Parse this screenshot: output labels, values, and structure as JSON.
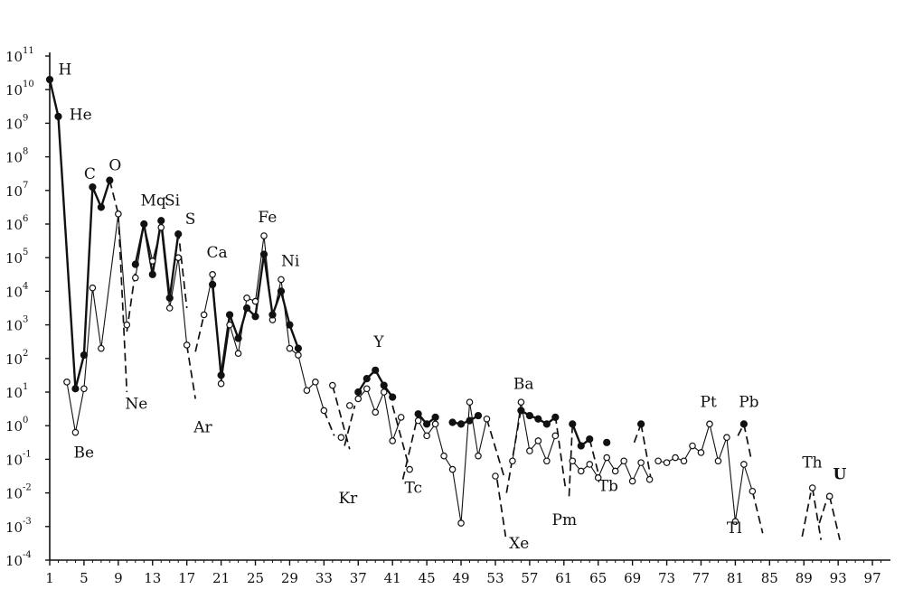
{
  "chart_data": {
    "type": "line",
    "title": "",
    "xlabel": "",
    "ylabel": "",
    "x_axis": {
      "range": [
        1,
        99
      ],
      "ticks": [
        1,
        5,
        9,
        13,
        17,
        21,
        25,
        29,
        33,
        37,
        41,
        45,
        49,
        53,
        57,
        61,
        65,
        69,
        73,
        77,
        81,
        85,
        89,
        93,
        97
      ]
    },
    "y_axis": {
      "scale": "log",
      "range_exponent": [
        -4,
        11
      ],
      "tick_exponents": [
        -4,
        -3,
        -2,
        -1,
        0,
        1,
        2,
        3,
        4,
        5,
        6,
        7,
        8,
        9,
        10,
        11
      ]
    },
    "grid": false,
    "legend": "none",
    "series": [
      {
        "marker": "filled-circle",
        "points_log10": [
          [
            1,
            10.3
          ],
          [
            2,
            9.2
          ],
          [
            4,
            1.1
          ],
          [
            5,
            2.1
          ],
          [
            6,
            7.1
          ],
          [
            7,
            6.5
          ],
          [
            8,
            7.3
          ],
          [
            11,
            4.8
          ],
          [
            12,
            6.0
          ],
          [
            13,
            4.5
          ],
          [
            14,
            6.1
          ],
          [
            15,
            3.8
          ],
          [
            16,
            5.7
          ],
          [
            20,
            4.2
          ],
          [
            21,
            1.5
          ],
          [
            22,
            3.3
          ],
          [
            23,
            2.6
          ],
          [
            24,
            3.5
          ],
          [
            25,
            3.25
          ],
          [
            26,
            5.1
          ],
          [
            27,
            3.3
          ],
          [
            28,
            4.0
          ],
          [
            29,
            3.0
          ],
          [
            30,
            2.3
          ],
          [
            37,
            1.0
          ],
          [
            38,
            1.4
          ],
          [
            39,
            1.65
          ],
          [
            40,
            1.2
          ],
          [
            41,
            0.85
          ],
          [
            44,
            0.35
          ],
          [
            45,
            0.05
          ],
          [
            46,
            0.25
          ],
          [
            48,
            0.1
          ],
          [
            49,
            0.05
          ],
          [
            50,
            0.15
          ],
          [
            51,
            0.3
          ],
          [
            56,
            0.45
          ],
          [
            57,
            0.3
          ],
          [
            58,
            0.2
          ],
          [
            59,
            0.05
          ],
          [
            60,
            0.25
          ],
          [
            62,
            0.05
          ],
          [
            63,
            -0.6
          ],
          [
            64,
            -0.4
          ],
          [
            66,
            -0.5
          ],
          [
            70,
            0.05
          ],
          [
            82,
            0.05
          ]
        ]
      },
      {
        "marker": "open-circle",
        "points_log10": [
          [
            3,
            1.3
          ],
          [
            4,
            -0.2
          ],
          [
            5,
            1.1
          ],
          [
            6,
            4.1
          ],
          [
            7,
            2.3
          ],
          [
            9,
            6.3
          ],
          [
            10,
            3.0
          ],
          [
            11,
            4.4
          ],
          [
            12,
            6.0
          ],
          [
            13,
            4.9
          ],
          [
            14,
            5.9
          ],
          [
            15,
            3.5
          ],
          [
            16,
            5.0
          ],
          [
            17,
            2.4
          ],
          [
            19,
            3.3
          ],
          [
            20,
            4.5
          ],
          [
            21,
            1.25
          ],
          [
            22,
            3.0
          ],
          [
            23,
            2.15
          ],
          [
            24,
            3.8
          ],
          [
            25,
            3.7
          ],
          [
            26,
            5.65
          ],
          [
            27,
            3.15
          ],
          [
            28,
            4.35
          ],
          [
            29,
            2.3
          ],
          [
            30,
            2.1
          ],
          [
            31,
            1.05
          ],
          [
            32,
            1.3
          ],
          [
            33,
            0.45
          ],
          [
            34,
            1.2
          ],
          [
            35,
            -0.35
          ],
          [
            36,
            0.6
          ],
          [
            37,
            0.8
          ],
          [
            38,
            1.1
          ],
          [
            39,
            0.4
          ],
          [
            40,
            1.0
          ],
          [
            41,
            -0.45
          ],
          [
            42,
            0.25
          ],
          [
            43,
            -1.3
          ],
          [
            44,
            0.15
          ],
          [
            45,
            -0.3
          ],
          [
            46,
            0.05
          ],
          [
            47,
            -0.9
          ],
          [
            48,
            -1.3
          ],
          [
            49,
            -2.9
          ],
          [
            50,
            0.7
          ],
          [
            51,
            -0.9
          ],
          [
            52,
            0.2
          ],
          [
            53,
            -1.5
          ],
          [
            55,
            -1.05
          ],
          [
            56,
            0.7
          ],
          [
            57,
            -0.75
          ],
          [
            58,
            -0.45
          ],
          [
            59,
            -1.05
          ],
          [
            60,
            -0.3
          ],
          [
            62,
            -1.05
          ],
          [
            63,
            -1.35
          ],
          [
            64,
            -1.15
          ],
          [
            65,
            -1.55
          ],
          [
            66,
            -0.95
          ],
          [
            67,
            -1.35
          ],
          [
            68,
            -1.05
          ],
          [
            69,
            -1.65
          ],
          [
            70,
            -1.1
          ],
          [
            71,
            -1.6
          ],
          [
            72,
            -1.05
          ],
          [
            73,
            -1.1
          ],
          [
            74,
            -0.95
          ],
          [
            75,
            -1.05
          ],
          [
            76,
            -0.6
          ],
          [
            77,
            -0.8
          ],
          [
            78,
            0.05
          ],
          [
            79,
            -1.05
          ],
          [
            80,
            -0.35
          ],
          [
            81,
            -2.85
          ],
          [
            82,
            -1.15
          ],
          [
            83,
            -1.95
          ],
          [
            90,
            -1.85
          ],
          [
            92,
            -2.1
          ]
        ]
      }
    ],
    "connecting_segments": {
      "filled": [
        [
          1,
          2
        ],
        [
          2,
          4
        ],
        [
          4,
          5
        ],
        [
          5,
          6
        ],
        [
          6,
          7
        ],
        [
          7,
          8
        ],
        [
          11,
          12
        ],
        [
          12,
          13
        ],
        [
          13,
          14
        ],
        [
          14,
          15
        ],
        [
          15,
          16
        ],
        [
          20,
          21
        ],
        [
          21,
          22
        ],
        [
          22,
          23
        ],
        [
          23,
          24
        ],
        [
          24,
          25
        ],
        [
          25,
          26
        ],
        [
          26,
          27
        ],
        [
          27,
          28
        ],
        [
          28,
          29
        ],
        [
          29,
          30
        ],
        [
          37,
          38
        ],
        [
          38,
          39
        ],
        [
          39,
          40
        ],
        [
          40,
          41
        ],
        [
          44,
          45
        ],
        [
          45,
          46
        ],
        [
          48,
          49
        ],
        [
          49,
          50
        ],
        [
          50,
          51
        ],
        [
          56,
          57
        ],
        [
          57,
          58
        ],
        [
          58,
          59
        ],
        [
          59,
          60
        ],
        [
          62,
          63
        ],
        [
          63,
          64
        ]
      ],
      "open": [
        [
          3,
          4
        ],
        [
          4,
          5
        ],
        [
          5,
          6
        ],
        [
          6,
          7
        ],
        [
          7,
          9
        ],
        [
          9,
          10
        ],
        [
          11,
          12
        ],
        [
          12,
          13
        ],
        [
          13,
          14
        ],
        [
          14,
          15
        ],
        [
          15,
          16
        ],
        [
          16,
          17
        ],
        [
          19,
          20
        ],
        [
          20,
          21
        ],
        [
          21,
          22
        ],
        [
          22,
          23
        ],
        [
          23,
          24
        ],
        [
          24,
          25
        ],
        [
          25,
          26
        ],
        [
          26,
          27
        ],
        [
          27,
          28
        ],
        [
          28,
          29
        ],
        [
          29,
          30
        ],
        [
          30,
          31
        ],
        [
          31,
          32
        ],
        [
          32,
          33
        ],
        [
          37,
          38
        ],
        [
          38,
          39
        ],
        [
          39,
          40
        ],
        [
          40,
          41
        ],
        [
          41,
          42
        ],
        [
          44,
          45
        ],
        [
          45,
          46
        ],
        [
          46,
          47
        ],
        [
          47,
          48
        ],
        [
          48,
          49
        ],
        [
          49,
          50
        ],
        [
          50,
          51
        ],
        [
          51,
          52
        ],
        [
          55,
          56
        ],
        [
          56,
          57
        ],
        [
          57,
          58
        ],
        [
          58,
          59
        ],
        [
          59,
          60
        ],
        [
          62,
          63
        ],
        [
          63,
          64
        ],
        [
          64,
          65
        ],
        [
          65,
          66
        ],
        [
          66,
          67
        ],
        [
          67,
          68
        ],
        [
          68,
          69
        ],
        [
          69,
          70
        ],
        [
          70,
          71
        ],
        [
          72,
          73
        ],
        [
          73,
          74
        ],
        [
          74,
          75
        ],
        [
          75,
          76
        ],
        [
          76,
          77
        ],
        [
          77,
          78
        ],
        [
          78,
          79
        ],
        [
          79,
          80
        ],
        [
          80,
          81
        ],
        [
          81,
          82
        ],
        [
          82,
          83
        ]
      ],
      "dashed": [
        [
          [
            8,
            7.3
          ],
          [
            9,
            6.3
          ]
        ],
        [
          [
            9,
            6.3
          ],
          [
            10,
            1.0
          ]
        ],
        [
          [
            10,
            2.8
          ],
          [
            11,
            4.6
          ]
        ],
        [
          [
            16,
            5.8
          ],
          [
            17,
            3.5
          ]
        ],
        [
          [
            17,
            2.4
          ],
          [
            18,
            0.8
          ]
        ],
        [
          [
            18,
            2.2
          ],
          [
            19,
            3.3
          ]
        ],
        [
          [
            33,
            0.45
          ],
          [
            34.2,
            -0.3
          ]
        ],
        [
          [
            34,
            1.2
          ],
          [
            36,
            -0.7
          ]
        ],
        [
          [
            35.4,
            -0.6
          ],
          [
            36.6,
            0.6
          ]
        ],
        [
          [
            41,
            0.6
          ],
          [
            43,
            -1.3
          ]
        ],
        [
          [
            42.2,
            -1.6
          ],
          [
            44,
            0.35
          ]
        ],
        [
          [
            52,
            0.2
          ],
          [
            54,
            -1.5
          ]
        ],
        [
          [
            53.2,
            -1.6
          ],
          [
            54.2,
            -3.3
          ]
        ],
        [
          [
            54.3,
            -2.0
          ],
          [
            56,
            0.5
          ]
        ],
        [
          [
            60,
            0.3
          ],
          [
            61.2,
            -1.9
          ]
        ],
        [
          [
            61.6,
            -2.1
          ],
          [
            62,
            0.05
          ]
        ],
        [
          [
            64,
            -0.4
          ],
          [
            65,
            -1.4
          ]
        ],
        [
          [
            69.2,
            -0.5
          ],
          [
            70,
            0.05
          ]
        ],
        [
          [
            70,
            0.05
          ],
          [
            71.1,
            -1.5
          ]
        ],
        [
          [
            81.3,
            -0.3
          ],
          [
            82,
            0.05
          ]
        ],
        [
          [
            82,
            0.05
          ],
          [
            82.9,
            -1.05
          ]
        ],
        [
          [
            83,
            -1.95
          ],
          [
            84.2,
            -3.2
          ]
        ],
        [
          [
            88.8,
            -3.3
          ],
          [
            89.8,
            -2.0
          ]
        ],
        [
          [
            90,
            -1.85
          ],
          [
            91.0,
            -3.4
          ]
        ],
        [
          [
            90.8,
            -2.9
          ],
          [
            91.8,
            -2.1
          ]
        ],
        [
          [
            92,
            -2.1
          ],
          [
            93.2,
            -3.4
          ]
        ]
      ]
    },
    "annotations": [
      {
        "text": "H",
        "x": 2.0,
        "y": 10.45
      },
      {
        "text": "He",
        "x": 3.3,
        "y": 9.1
      },
      {
        "text": "C",
        "x": 5.0,
        "y": 7.35
      },
      {
        "text": "O",
        "x": 7.9,
        "y": 7.6
      },
      {
        "text": "Mq",
        "x": 11.6,
        "y": 6.55
      },
      {
        "text": "Si",
        "x": 14.4,
        "y": 6.55
      },
      {
        "text": "S",
        "x": 16.8,
        "y": 6.0
      },
      {
        "text": "Ne",
        "x": 9.8,
        "y": 0.5
      },
      {
        "text": "Be",
        "x": 3.8,
        "y": -0.95
      },
      {
        "text": "Ca",
        "x": 19.3,
        "y": 5.0
      },
      {
        "text": "Fe",
        "x": 25.3,
        "y": 6.05
      },
      {
        "text": "Ni",
        "x": 28.0,
        "y": 4.75
      },
      {
        "text": "Ar",
        "x": 17.8,
        "y": -0.2
      },
      {
        "text": "Y",
        "x": 38.8,
        "y": 2.35
      },
      {
        "text": "Kr",
        "x": 34.7,
        "y": -2.3
      },
      {
        "text": "Tc",
        "x": 42.4,
        "y": -2.0
      },
      {
        "text": "Ba",
        "x": 55.1,
        "y": 1.1
      },
      {
        "text": "Xe",
        "x": 54.6,
        "y": -3.65
      },
      {
        "text": "Pm",
        "x": 59.6,
        "y": -2.95
      },
      {
        "text": "Tb",
        "x": 65.0,
        "y": -1.95
      },
      {
        "text": "Pt",
        "x": 76.9,
        "y": 0.55
      },
      {
        "text": "Pb",
        "x": 81.4,
        "y": 0.55
      },
      {
        "text": "Tl",
        "x": 80.0,
        "y": -3.2
      },
      {
        "text": "Th",
        "x": 88.8,
        "y": -1.25
      },
      {
        "text": "U",
        "x": 92.4,
        "y": -1.6
      }
    ]
  }
}
